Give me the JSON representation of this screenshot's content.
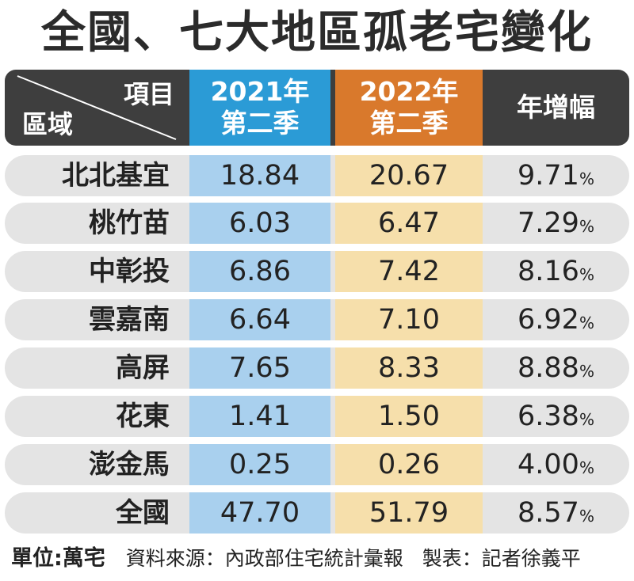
{
  "title": "全國、七大地區孤老宅變化",
  "header": {
    "item_label": "項目",
    "region_label": "區域",
    "col_2021_line1": "2021年",
    "col_2021_line2": "第二季",
    "col_2022_line1": "2022年",
    "col_2022_line2": "第二季",
    "col_yoy": "年增幅"
  },
  "rows": [
    {
      "region": "北北基宜",
      "v2021": "18.84",
      "v2022": "20.67",
      "yoy": "9.71",
      "pct": "%"
    },
    {
      "region": "桃竹苗",
      "v2021": "6.03",
      "v2022": "6.47",
      "yoy": "7.29",
      "pct": "%"
    },
    {
      "region": "中彰投",
      "v2021": "6.86",
      "v2022": "7.42",
      "yoy": "8.16",
      "pct": "%"
    },
    {
      "region": "雲嘉南",
      "v2021": "6.64",
      "v2022": "7.10",
      "yoy": "6.92",
      "pct": "%"
    },
    {
      "region": "高屏",
      "v2021": "7.65",
      "v2022": "8.33",
      "yoy": "8.88",
      "pct": "%"
    },
    {
      "region": "花東",
      "v2021": "1.41",
      "v2022": "1.50",
      "yoy": "6.38",
      "pct": "%"
    },
    {
      "region": "澎金馬",
      "v2021": "0.25",
      "v2022": "0.26",
      "yoy": "4.00",
      "pct": "%"
    },
    {
      "region": "全國",
      "v2021": "47.70",
      "v2022": "51.79",
      "yoy": "8.57",
      "pct": "%"
    }
  ],
  "footer": {
    "unit": "單位:萬宅",
    "source": "資料來源：內政部住宅統計彙報",
    "credit": "製表：記者徐義平"
  },
  "colors": {
    "header_bg": "#3e3e3e",
    "col_2021_header": "#2b9bd6",
    "col_2022_header": "#d9792c",
    "col_2021_cell": "#a9d0ee",
    "col_2022_cell": "#f6dfab",
    "row_bg": "#e4e4e4"
  }
}
